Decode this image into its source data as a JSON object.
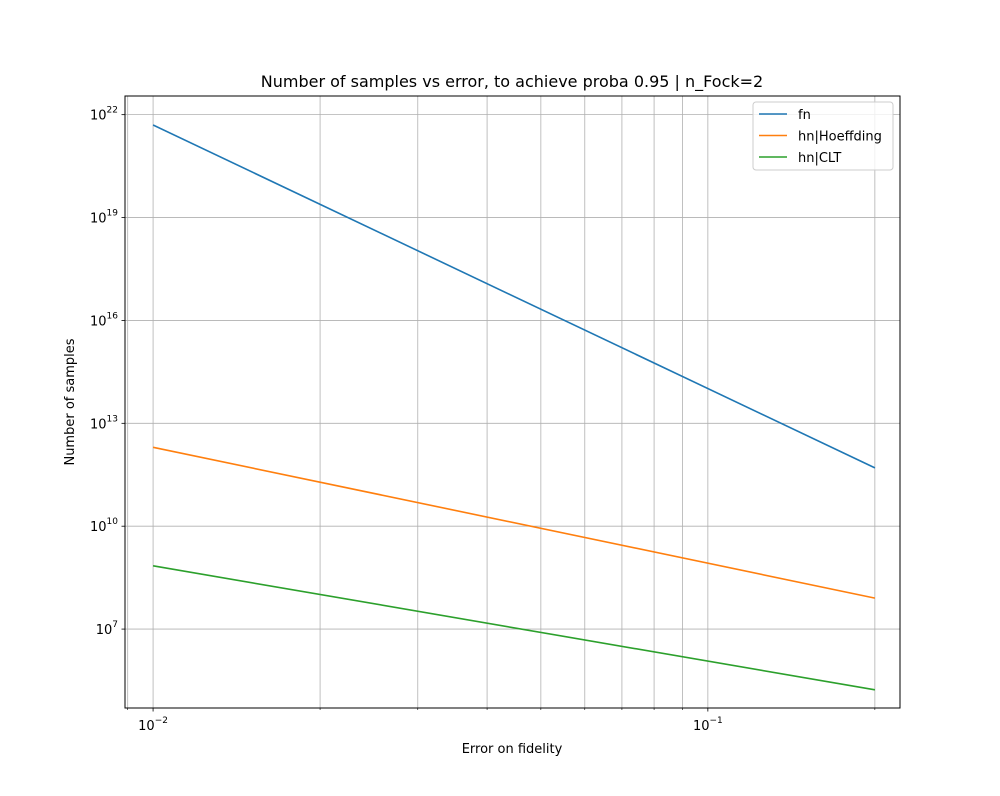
{
  "chart_data": {
    "type": "line",
    "title": "Number of samples vs error, to achieve proba 0.95 | n_Fock=2",
    "xlabel": "Error on fidelity",
    "ylabel": "Number of samples",
    "xscale": "log",
    "yscale": "log",
    "xlim": [
      0.0089,
      0.222
    ],
    "ylim": [
      50000.0,
      3.5e+22
    ],
    "grid": true,
    "legend_position": "top-right",
    "x_ticks": [
      {
        "value": 0.01,
        "base": "10",
        "exp": "−2"
      },
      {
        "value": 0.1,
        "base": "10",
        "exp": "−1"
      }
    ],
    "y_ticks": [
      {
        "value": 10000000.0,
        "base": "10",
        "exp": "7"
      },
      {
        "value": 10000000000.0,
        "base": "10",
        "exp": "10"
      },
      {
        "value": 10000000000000.0,
        "base": "10",
        "exp": "13"
      },
      {
        "value": 1e+16,
        "base": "10",
        "exp": "16"
      },
      {
        "value": 1e+19,
        "base": "10",
        "exp": "19"
      },
      {
        "value": 1e+22,
        "base": "10",
        "exp": "22"
      }
    ],
    "series": [
      {
        "name": "fn",
        "color": "#1f77b4",
        "x": [
          0.01,
          0.2
        ],
        "y": [
          5e+21,
          500000000000.0
        ]
      },
      {
        "name": "hn|Hoeffding",
        "color": "#ff7f0e",
        "x": [
          0.01,
          0.2
        ],
        "y": [
          2000000000000.0,
          80000000.0
        ]
      },
      {
        "name": "hn|CLT",
        "color": "#2ca02c",
        "x": [
          0.01,
          0.2
        ],
        "y": [
          700000000.0,
          170000.0
        ]
      }
    ]
  }
}
